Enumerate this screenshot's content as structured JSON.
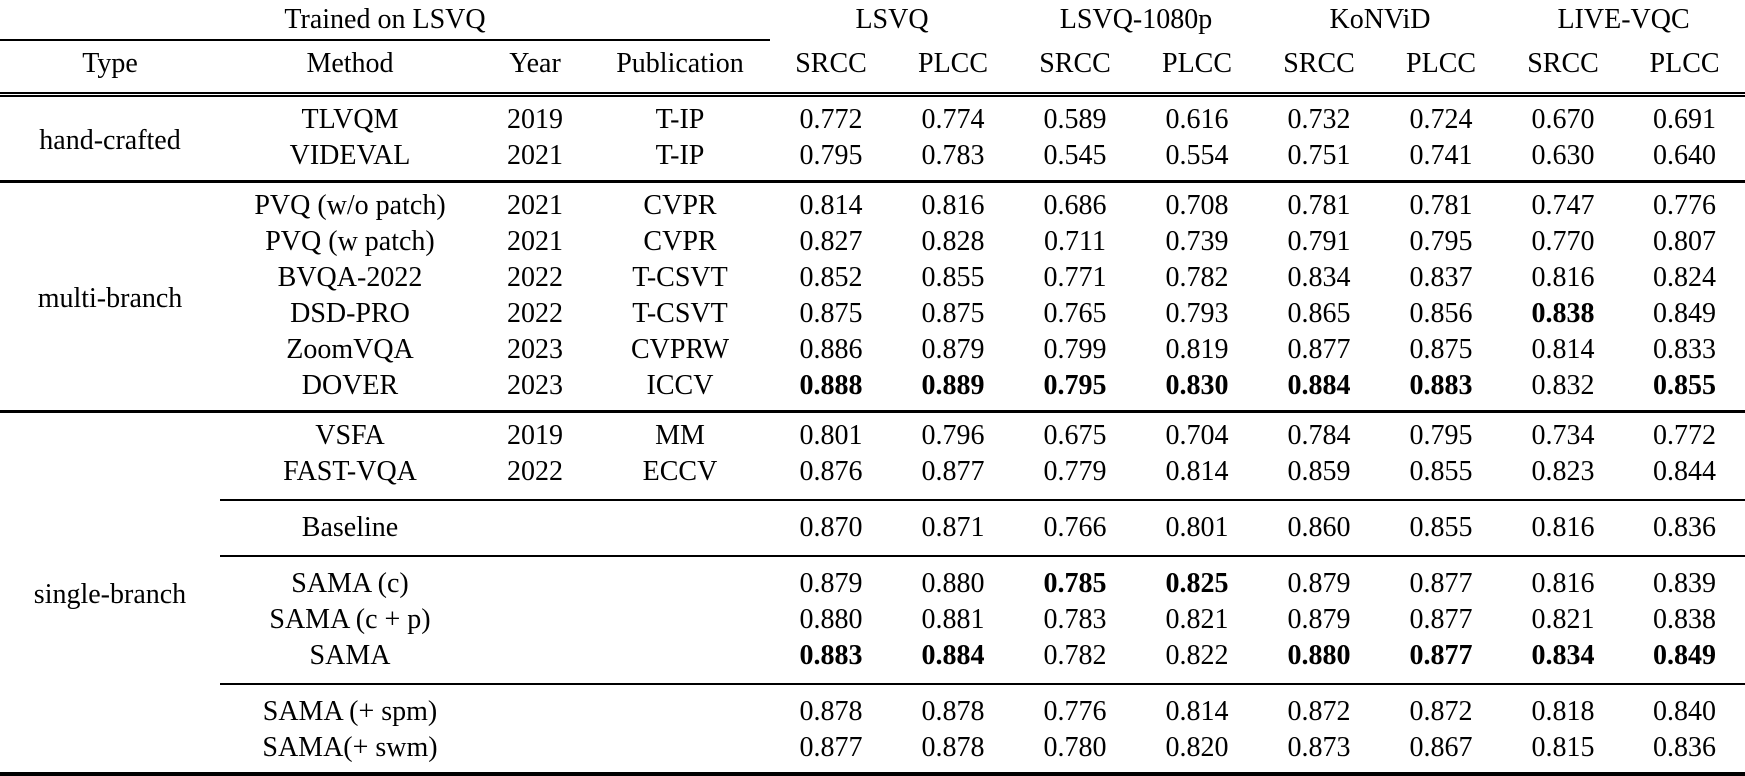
{
  "colors": {
    "text": "#000000",
    "background": "#ffffff",
    "rule": "#000000"
  },
  "table": {
    "trained_on_label": "Trained on LSVQ",
    "datasets": [
      "LSVQ",
      "LSVQ-1080p",
      "KoNViD",
      "LIVE-VQC"
    ],
    "columns": [
      "Type",
      "Method",
      "Year",
      "Publication",
      "SRCC",
      "PLCC",
      "SRCC",
      "PLCC",
      "SRCC",
      "PLCC",
      "SRCC",
      "PLCC"
    ],
    "sections": [
      {
        "type_label": "hand-crafted",
        "subgroups": [
          {
            "rows": [
              {
                "method": "TLVQM",
                "year": "2019",
                "pub": "T-IP",
                "values": [
                  "0.772",
                  "0.774",
                  "0.589",
                  "0.616",
                  "0.732",
                  "0.724",
                  "0.670",
                  "0.691"
                ],
                "bold": [
                  0,
                  0,
                  0,
                  0,
                  0,
                  0,
                  0,
                  0
                ]
              },
              {
                "method": "VIDEVAL",
                "year": "2021",
                "pub": "T-IP",
                "values": [
                  "0.795",
                  "0.783",
                  "0.545",
                  "0.554",
                  "0.751",
                  "0.741",
                  "0.630",
                  "0.640"
                ],
                "bold": [
                  0,
                  0,
                  0,
                  0,
                  0,
                  0,
                  0,
                  0
                ]
              }
            ]
          }
        ]
      },
      {
        "type_label": "multi-branch",
        "subgroups": [
          {
            "rows": [
              {
                "method": "PVQ (w/o patch)",
                "year": "2021",
                "pub": "CVPR",
                "values": [
                  "0.814",
                  "0.816",
                  "0.686",
                  "0.708",
                  "0.781",
                  "0.781",
                  "0.747",
                  "0.776"
                ],
                "bold": [
                  0,
                  0,
                  0,
                  0,
                  0,
                  0,
                  0,
                  0
                ]
              },
              {
                "method": "PVQ (w patch)",
                "year": "2021",
                "pub": "CVPR",
                "values": [
                  "0.827",
                  "0.828",
                  "0.711",
                  "0.739",
                  "0.791",
                  "0.795",
                  "0.770",
                  "0.807"
                ],
                "bold": [
                  0,
                  0,
                  0,
                  0,
                  0,
                  0,
                  0,
                  0
                ]
              },
              {
                "method": "BVQA-2022",
                "year": "2022",
                "pub": "T-CSVT",
                "values": [
                  "0.852",
                  "0.855",
                  "0.771",
                  "0.782",
                  "0.834",
                  "0.837",
                  "0.816",
                  "0.824"
                ],
                "bold": [
                  0,
                  0,
                  0,
                  0,
                  0,
                  0,
                  0,
                  0
                ]
              },
              {
                "method": "DSD-PRO",
                "year": "2022",
                "pub": "T-CSVT",
                "values": [
                  "0.875",
                  "0.875",
                  "0.765",
                  "0.793",
                  "0.865",
                  "0.856",
                  "0.838",
                  "0.849"
                ],
                "bold": [
                  0,
                  0,
                  0,
                  0,
                  0,
                  0,
                  1,
                  0
                ]
              },
              {
                "method": "ZoomVQA",
                "year": "2023",
                "pub": "CVPRW",
                "values": [
                  "0.886",
                  "0.879",
                  "0.799",
                  "0.819",
                  "0.877",
                  "0.875",
                  "0.814",
                  "0.833"
                ],
                "bold": [
                  0,
                  0,
                  0,
                  0,
                  0,
                  0,
                  0,
                  0
                ]
              },
              {
                "method": "DOVER",
                "year": "2023",
                "pub": "ICCV",
                "values": [
                  "0.888",
                  "0.889",
                  "0.795",
                  "0.830",
                  "0.884",
                  "0.883",
                  "0.832",
                  "0.855"
                ],
                "bold": [
                  1,
                  1,
                  1,
                  1,
                  1,
                  1,
                  0,
                  1
                ]
              }
            ]
          }
        ]
      },
      {
        "type_label": "single-branch",
        "subgroups": [
          {
            "rows": [
              {
                "method": "VSFA",
                "year": "2019",
                "pub": "MM",
                "values": [
                  "0.801",
                  "0.796",
                  "0.675",
                  "0.704",
                  "0.784",
                  "0.795",
                  "0.734",
                  "0.772"
                ],
                "bold": [
                  0,
                  0,
                  0,
                  0,
                  0,
                  0,
                  0,
                  0
                ]
              },
              {
                "method": "FAST-VQA",
                "year": "2022",
                "pub": "ECCV",
                "values": [
                  "0.876",
                  "0.877",
                  "0.779",
                  "0.814",
                  "0.859",
                  "0.855",
                  "0.823",
                  "0.844"
                ],
                "bold": [
                  0,
                  0,
                  0,
                  0,
                  0,
                  0,
                  0,
                  0
                ]
              }
            ]
          },
          {
            "rows": [
              {
                "method": "Baseline",
                "year": "",
                "pub": "",
                "values": [
                  "0.870",
                  "0.871",
                  "0.766",
                  "0.801",
                  "0.860",
                  "0.855",
                  "0.816",
                  "0.836"
                ],
                "bold": [
                  0,
                  0,
                  0,
                  0,
                  0,
                  0,
                  0,
                  0
                ]
              }
            ]
          },
          {
            "rows": [
              {
                "method": "SAMA (c)",
                "year": "",
                "pub": "",
                "values": [
                  "0.879",
                  "0.880",
                  "0.785",
                  "0.825",
                  "0.879",
                  "0.877",
                  "0.816",
                  "0.839"
                ],
                "bold": [
                  0,
                  0,
                  1,
                  1,
                  0,
                  0,
                  0,
                  0
                ]
              },
              {
                "method": "SAMA (c + p)",
                "year": "",
                "pub": "",
                "values": [
                  "0.880",
                  "0.881",
                  "0.783",
                  "0.821",
                  "0.879",
                  "0.877",
                  "0.821",
                  "0.838"
                ],
                "bold": [
                  0,
                  0,
                  0,
                  0,
                  0,
                  0,
                  0,
                  0
                ]
              },
              {
                "method": "SAMA",
                "year": "",
                "pub": "",
                "values": [
                  "0.883",
                  "0.884",
                  "0.782",
                  "0.822",
                  "0.880",
                  "0.877",
                  "0.834",
                  "0.849"
                ],
                "bold": [
                  1,
                  1,
                  0,
                  0,
                  1,
                  1,
                  1,
                  1
                ]
              }
            ]
          },
          {
            "rows": [
              {
                "method": "SAMA (+ spm)",
                "year": "",
                "pub": "",
                "values": [
                  "0.878",
                  "0.878",
                  "0.776",
                  "0.814",
                  "0.872",
                  "0.872",
                  "0.818",
                  "0.840"
                ],
                "bold": [
                  0,
                  0,
                  0,
                  0,
                  0,
                  0,
                  0,
                  0
                ]
              },
              {
                "method": "SAMA(+ swm)",
                "year": "",
                "pub": "",
                "values": [
                  "0.877",
                  "0.878",
                  "0.780",
                  "0.820",
                  "0.873",
                  "0.867",
                  "0.815",
                  "0.836"
                ],
                "bold": [
                  0,
                  0,
                  0,
                  0,
                  0,
                  0,
                  0,
                  0
                ]
              }
            ]
          }
        ]
      }
    ]
  }
}
